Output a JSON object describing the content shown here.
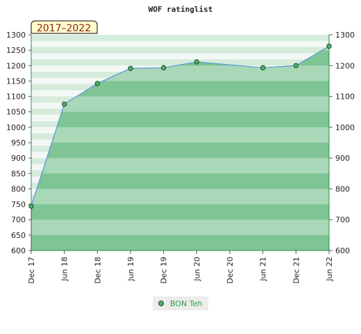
{
  "chart_data": {
    "type": "area",
    "title": "WOF ratinglist",
    "period_label": "2017–2022",
    "categories": [
      "Dec 17",
      "Jun 18",
      "Dec 18",
      "Jun 19",
      "Dec 19",
      "Jun 20",
      "Dec 20",
      "Jun 21",
      "Dec 21",
      "Jun 22"
    ],
    "series": [
      {
        "name": "BON Teh",
        "x": [
          "Dec 17",
          "Jun 18",
          "Dec 18",
          "Jun 19",
          "Dec 19",
          "Jun 20",
          "Jun 21",
          "Dec 21",
          "Jun 22"
        ],
        "values": [
          744,
          1075,
          1142,
          1191,
          1193,
          1212,
          1193,
          1200,
          1263
        ]
      }
    ],
    "ylim": [
      600,
      1300
    ],
    "y_ticks_left": [
      600,
      650,
      700,
      750,
      800,
      850,
      900,
      950,
      1000,
      1050,
      1100,
      1150,
      1200,
      1250,
      1300
    ],
    "y_ticks_right": [
      600,
      700,
      800,
      900,
      1000,
      1100,
      1200,
      1300
    ],
    "legend_position": "bottom-center",
    "colors": {
      "line": "#5b9bd5",
      "marker": "#4caf6a",
      "band_dark": "#7fc495",
      "band_light": "#a8d8b7",
      "bg_light": "#f3f8f4",
      "bg_dark": "#d5ebdb"
    }
  }
}
